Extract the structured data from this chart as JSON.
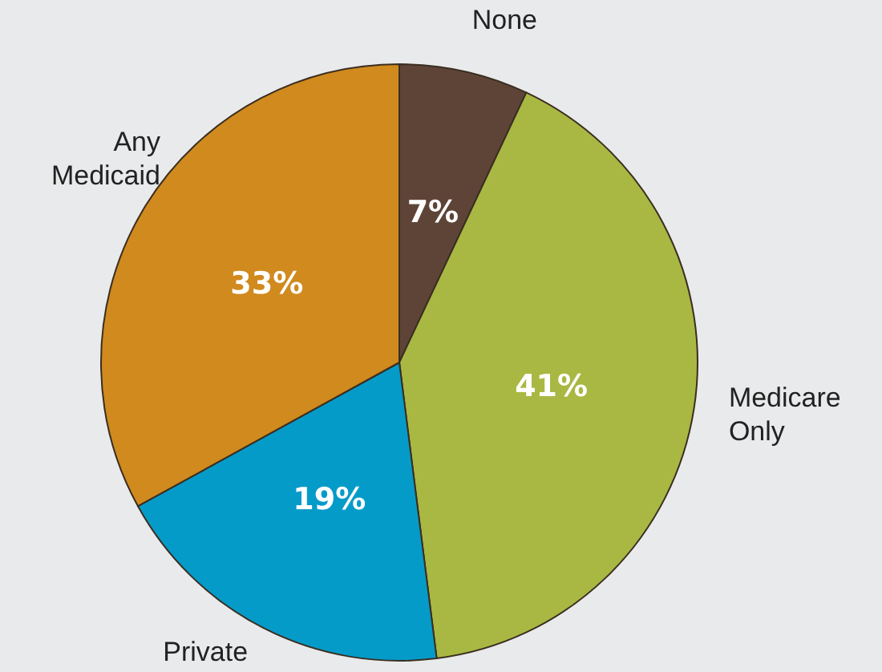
{
  "chart_data": {
    "type": "pie",
    "categories": [
      "None",
      "Medicare\nOnly",
      "Private",
      "Any\nMedicaid"
    ],
    "values": [
      7,
      41,
      19,
      33
    ],
    "value_labels": [
      "7%",
      "41%",
      "19%",
      "33%"
    ],
    "colors": [
      "#5e4437",
      "#a9b842",
      "#059bc9",
      "#d08a1e"
    ],
    "legend": false
  }
}
